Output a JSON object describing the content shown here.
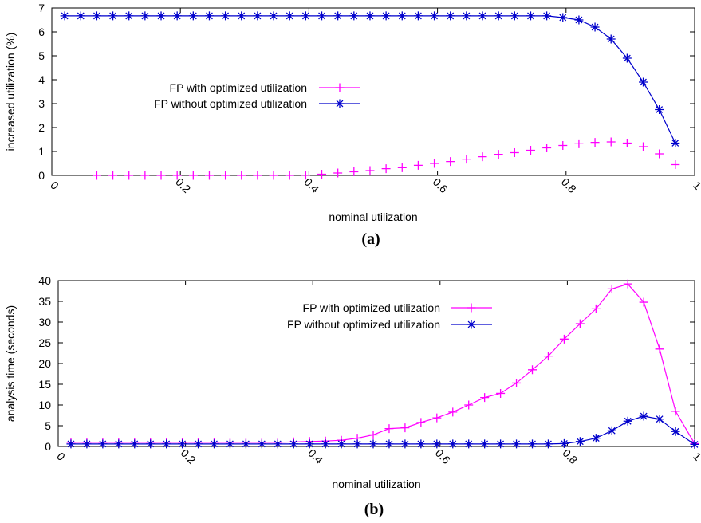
{
  "chart_data": [
    {
      "type": "line",
      "caption": "(a)",
      "xlabel": "nominal utilization",
      "ylabel": "increased utilization (%)",
      "xlim": [
        0,
        1
      ],
      "ylim": [
        0,
        7
      ],
      "x_ticks": [
        0,
        0.2,
        0.4,
        0.6,
        0.8,
        1
      ],
      "y_ticks": [
        0,
        1,
        2,
        3,
        4,
        5,
        6,
        7
      ],
      "x_tick_labels": [
        "0",
        "0.2",
        "0.4",
        "0.6",
        "0.8",
        "1"
      ],
      "y_tick_labels": [
        "0",
        "1",
        "2",
        "3",
        "4",
        "5",
        "6",
        "7"
      ],
      "grid": false,
      "legend_position": "center-left",
      "series": [
        {
          "name": "FP with optimized utilization",
          "color": "#ff00ff",
          "marker": "plus",
          "line": false,
          "x": [
            0.07,
            0.095,
            0.12,
            0.145,
            0.17,
            0.195,
            0.22,
            0.245,
            0.27,
            0.295,
            0.32,
            0.345,
            0.37,
            0.395,
            0.42,
            0.445,
            0.47,
            0.495,
            0.52,
            0.545,
            0.57,
            0.595,
            0.62,
            0.645,
            0.67,
            0.695,
            0.72,
            0.745,
            0.77,
            0.795,
            0.82,
            0.845,
            0.87,
            0.895,
            0.92,
            0.945,
            0.97
          ],
          "y": [
            0,
            0,
            0,
            0,
            0,
            0,
            0,
            0,
            0,
            0,
            0,
            0,
            0,
            0.01,
            0.05,
            0.1,
            0.15,
            0.2,
            0.28,
            0.32,
            0.42,
            0.5,
            0.58,
            0.68,
            0.78,
            0.88,
            0.95,
            1.05,
            1.15,
            1.25,
            1.32,
            1.38,
            1.4,
            1.35,
            1.2,
            0.9,
            0.45
          ]
        },
        {
          "name": "FP without optimized utilization",
          "color": "#0000cc",
          "marker": "star",
          "line": true,
          "x": [
            0.02,
            0.045,
            0.07,
            0.095,
            0.12,
            0.145,
            0.17,
            0.195,
            0.22,
            0.245,
            0.27,
            0.295,
            0.32,
            0.345,
            0.37,
            0.395,
            0.42,
            0.445,
            0.47,
            0.495,
            0.52,
            0.545,
            0.57,
            0.595,
            0.62,
            0.645,
            0.67,
            0.695,
            0.72,
            0.745,
            0.77,
            0.795,
            0.82,
            0.845,
            0.87,
            0.895,
            0.92,
            0.945,
            0.97
          ],
          "y": [
            6.67,
            6.67,
            6.67,
            6.67,
            6.67,
            6.67,
            6.67,
            6.67,
            6.67,
            6.67,
            6.67,
            6.67,
            6.67,
            6.67,
            6.67,
            6.67,
            6.67,
            6.67,
            6.67,
            6.67,
            6.67,
            6.67,
            6.67,
            6.67,
            6.67,
            6.67,
            6.67,
            6.67,
            6.67,
            6.67,
            6.67,
            6.6,
            6.5,
            6.2,
            5.7,
            4.9,
            3.9,
            2.75,
            1.35
          ]
        }
      ]
    },
    {
      "type": "line",
      "caption": "(b)",
      "xlabel": "nominal utilization",
      "ylabel": "analysis time (seconds)",
      "xlim": [
        0,
        1
      ],
      "ylim": [
        0,
        40
      ],
      "x_ticks": [
        0,
        0.2,
        0.4,
        0.6,
        0.8,
        1
      ],
      "y_ticks": [
        0,
        5,
        10,
        15,
        20,
        25,
        30,
        35,
        40
      ],
      "x_tick_labels": [
        "0",
        "0.2",
        "0.4",
        "0.6",
        "0.8",
        "1"
      ],
      "y_tick_labels": [
        "0",
        "5",
        "10",
        "15",
        "20",
        "25",
        "30",
        "35",
        "40"
      ],
      "grid": false,
      "legend_position": "top-center",
      "series": [
        {
          "name": "FP with optimized utilization",
          "color": "#ff00ff",
          "marker": "plus",
          "line": true,
          "x": [
            0.02,
            0.045,
            0.07,
            0.095,
            0.12,
            0.145,
            0.17,
            0.195,
            0.22,
            0.245,
            0.27,
            0.295,
            0.32,
            0.345,
            0.37,
            0.395,
            0.42,
            0.445,
            0.47,
            0.495,
            0.52,
            0.545,
            0.57,
            0.595,
            0.62,
            0.645,
            0.67,
            0.695,
            0.72,
            0.745,
            0.77,
            0.795,
            0.82,
            0.845,
            0.87,
            0.895,
            0.92,
            0.945,
            0.97,
            1.0
          ],
          "y": [
            1,
            1,
            1,
            1,
            1,
            1,
            1,
            1,
            1,
            1,
            1,
            1,
            1,
            1,
            1.1,
            1.2,
            1.3,
            1.5,
            2,
            2.8,
            4.3,
            4.5,
            5.8,
            6.9,
            8.3,
            10,
            11.8,
            12.8,
            15.3,
            18.5,
            21.8,
            25.9,
            29.6,
            33.2,
            38,
            39.2,
            34.8,
            23.5,
            8.5,
            0.7
          ]
        },
        {
          "name": "FP without optimized utilization",
          "color": "#0000cc",
          "marker": "star",
          "line": true,
          "x": [
            0.02,
            0.045,
            0.07,
            0.095,
            0.12,
            0.145,
            0.17,
            0.195,
            0.22,
            0.245,
            0.27,
            0.295,
            0.32,
            0.345,
            0.37,
            0.395,
            0.42,
            0.445,
            0.47,
            0.495,
            0.52,
            0.545,
            0.57,
            0.595,
            0.62,
            0.645,
            0.67,
            0.695,
            0.72,
            0.745,
            0.77,
            0.795,
            0.82,
            0.845,
            0.87,
            0.895,
            0.92,
            0.945,
            0.97,
            1.0
          ],
          "y": [
            0.6,
            0.6,
            0.6,
            0.6,
            0.6,
            0.6,
            0.6,
            0.6,
            0.6,
            0.6,
            0.6,
            0.6,
            0.6,
            0.6,
            0.6,
            0.6,
            0.6,
            0.6,
            0.6,
            0.6,
            0.6,
            0.6,
            0.6,
            0.6,
            0.6,
            0.6,
            0.6,
            0.6,
            0.6,
            0.6,
            0.6,
            0.7,
            1.2,
            2,
            3.8,
            6.1,
            7.3,
            6.6,
            3.6,
            0.5
          ]
        }
      ]
    }
  ]
}
